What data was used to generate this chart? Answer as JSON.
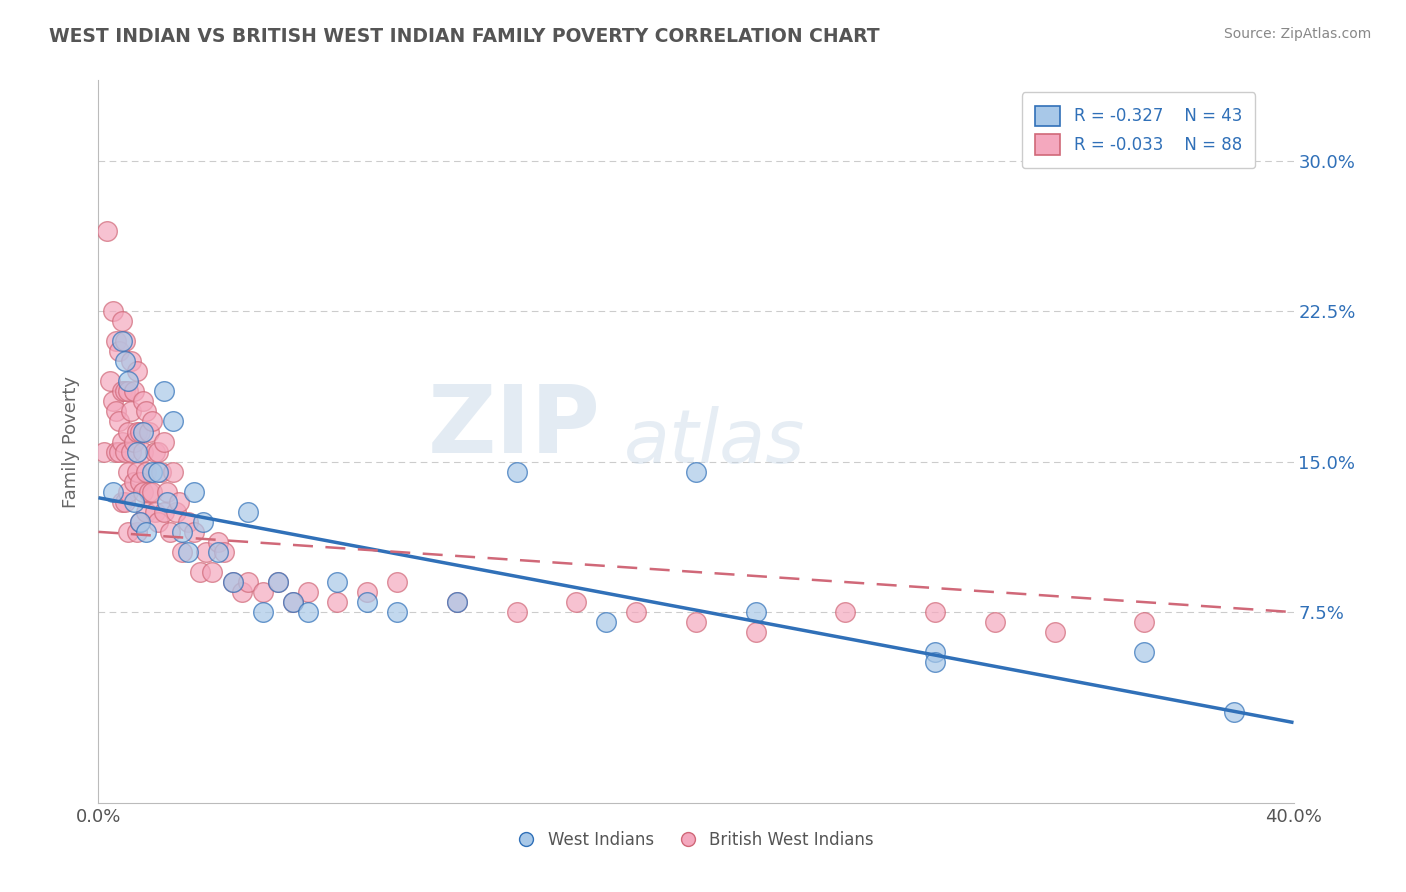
{
  "title": "WEST INDIAN VS BRITISH WEST INDIAN FAMILY POVERTY CORRELATION CHART",
  "source_text": "Source: ZipAtlas.com",
  "ylabel": "Family Poverty",
  "xlim": [
    0.0,
    0.4
  ],
  "ylim": [
    -0.02,
    0.34
  ],
  "yticks": [
    0.075,
    0.15,
    0.225,
    0.3
  ],
  "ytick_labels": [
    "7.5%",
    "15.0%",
    "22.5%",
    "30.0%"
  ],
  "xtick_labels": [
    "0.0%",
    "40.0%"
  ],
  "series1_color": "#a8c8e8",
  "series2_color": "#f4a8be",
  "line1_color": "#3070b8",
  "line2_color": "#d06878",
  "watermark_zip": "ZIP",
  "watermark_atlas": "atlas",
  "background_color": "#ffffff",
  "west_indians_x": [
    0.005,
    0.008,
    0.009,
    0.01,
    0.012,
    0.013,
    0.014,
    0.015,
    0.016,
    0.018,
    0.02,
    0.022,
    0.023,
    0.025,
    0.028,
    0.03,
    0.032,
    0.035,
    0.04,
    0.045,
    0.05,
    0.055,
    0.06,
    0.065,
    0.07,
    0.08,
    0.09,
    0.1,
    0.12,
    0.14,
    0.17,
    0.2,
    0.22,
    0.28,
    0.28,
    0.35,
    0.38
  ],
  "west_indians_y": [
    0.135,
    0.21,
    0.2,
    0.19,
    0.13,
    0.155,
    0.12,
    0.165,
    0.115,
    0.145,
    0.145,
    0.185,
    0.13,
    0.17,
    0.115,
    0.105,
    0.135,
    0.12,
    0.105,
    0.09,
    0.125,
    0.075,
    0.09,
    0.08,
    0.075,
    0.09,
    0.08,
    0.075,
    0.08,
    0.145,
    0.07,
    0.145,
    0.075,
    0.055,
    0.05,
    0.055,
    0.025
  ],
  "british_west_indians_x": [
    0.002,
    0.003,
    0.004,
    0.005,
    0.005,
    0.006,
    0.006,
    0.006,
    0.007,
    0.007,
    0.007,
    0.008,
    0.008,
    0.008,
    0.008,
    0.009,
    0.009,
    0.009,
    0.009,
    0.01,
    0.01,
    0.01,
    0.01,
    0.01,
    0.011,
    0.011,
    0.011,
    0.012,
    0.012,
    0.012,
    0.013,
    0.013,
    0.013,
    0.013,
    0.014,
    0.014,
    0.014,
    0.015,
    0.015,
    0.015,
    0.016,
    0.016,
    0.016,
    0.017,
    0.017,
    0.018,
    0.018,
    0.019,
    0.019,
    0.02,
    0.02,
    0.021,
    0.022,
    0.022,
    0.023,
    0.024,
    0.025,
    0.026,
    0.027,
    0.028,
    0.03,
    0.032,
    0.034,
    0.036,
    0.038,
    0.04,
    0.042,
    0.045,
    0.048,
    0.05,
    0.055,
    0.06,
    0.065,
    0.07,
    0.08,
    0.09,
    0.1,
    0.12,
    0.14,
    0.16,
    0.18,
    0.2,
    0.22,
    0.25,
    0.28,
    0.3,
    0.32,
    0.35
  ],
  "british_west_indians_y": [
    0.155,
    0.265,
    0.19,
    0.225,
    0.18,
    0.21,
    0.175,
    0.155,
    0.205,
    0.17,
    0.155,
    0.22,
    0.185,
    0.16,
    0.13,
    0.21,
    0.185,
    0.155,
    0.13,
    0.185,
    0.165,
    0.145,
    0.135,
    0.115,
    0.2,
    0.175,
    0.155,
    0.185,
    0.16,
    0.14,
    0.195,
    0.165,
    0.145,
    0.115,
    0.165,
    0.14,
    0.12,
    0.18,
    0.155,
    0.135,
    0.175,
    0.145,
    0.125,
    0.165,
    0.135,
    0.17,
    0.135,
    0.155,
    0.125,
    0.155,
    0.12,
    0.145,
    0.16,
    0.125,
    0.135,
    0.115,
    0.145,
    0.125,
    0.13,
    0.105,
    0.12,
    0.115,
    0.095,
    0.105,
    0.095,
    0.11,
    0.105,
    0.09,
    0.085,
    0.09,
    0.085,
    0.09,
    0.08,
    0.085,
    0.08,
    0.085,
    0.09,
    0.08,
    0.075,
    0.08,
    0.075,
    0.07,
    0.065,
    0.075,
    0.075,
    0.07,
    0.065,
    0.07
  ],
  "line1_x0": 0.0,
  "line1_y0": 0.132,
  "line1_x1": 0.4,
  "line1_y1": 0.02,
  "line2_x0": 0.0,
  "line2_y0": 0.115,
  "line2_x1": 0.4,
  "line2_y1": 0.075
}
